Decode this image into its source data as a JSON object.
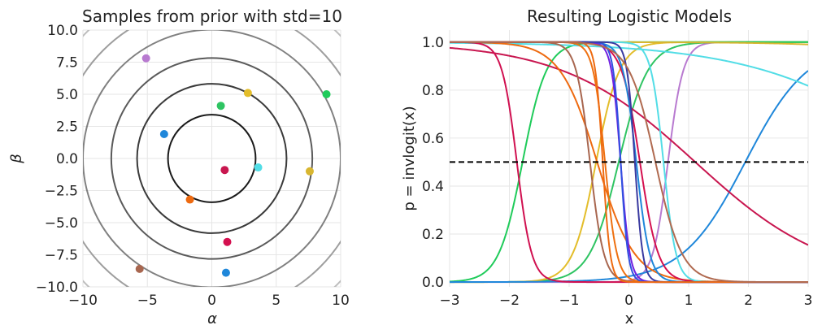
{
  "chart_data": [
    {
      "type": "scatter",
      "title": "Samples from prior with std=10",
      "xlabel": "α",
      "ylabel": "β",
      "xlim": [
        -10,
        10
      ],
      "ylim": [
        -10,
        10
      ],
      "xticks": [
        "−10",
        "−5",
        "0",
        "5",
        "10"
      ],
      "yticks": [
        "10.0",
        "7.5",
        "5.0",
        "2.5",
        "0.0",
        "−2.5",
        "−5.0",
        "−7.5",
        "−10.0"
      ],
      "xtick_values": [
        -10,
        -5,
        0,
        5,
        10
      ],
      "ytick_values": [
        10,
        7.5,
        5,
        2.5,
        0,
        -2.5,
        -5,
        -7.5,
        -10
      ],
      "grid": true,
      "contours": [
        {
          "radius": 3.4,
          "color": "#1a1a1a"
        },
        {
          "radius": 5.8,
          "color": "#3a3a3a"
        },
        {
          "radius": 7.8,
          "color": "#5a5a5a"
        },
        {
          "radius": 10.0,
          "color": "#808080"
        },
        {
          "radius": 11.9,
          "color": "#9e9e9e"
        },
        {
          "radius": 13.8,
          "color": "#bdbdbd"
        }
      ],
      "points": [
        {
          "alpha": -5.1,
          "beta": 7.8,
          "color": "#b87ad0"
        },
        {
          "alpha": 0.7,
          "beta": 4.1,
          "color": "#2ec462"
        },
        {
          "alpha": 2.8,
          "beta": 5.1,
          "color": "#e3bd2a"
        },
        {
          "alpha": 8.9,
          "beta": 5.0,
          "color": "#1fcb5a"
        },
        {
          "alpha": -3.7,
          "beta": 1.9,
          "color": "#1f87da"
        },
        {
          "alpha": 1.0,
          "beta": -0.9,
          "color": "#c8164f"
        },
        {
          "alpha": 3.6,
          "beta": -0.7,
          "color": "#52dde6"
        },
        {
          "alpha": 7.6,
          "beta": -1.0,
          "color": "#d8b630"
        },
        {
          "alpha": -1.7,
          "beta": -3.2,
          "color": "#ee6a10"
        },
        {
          "alpha": 1.2,
          "beta": -6.5,
          "color": "#d4104f"
        },
        {
          "alpha": -5.6,
          "beta": -8.6,
          "color": "#a8664f"
        },
        {
          "alpha": 1.1,
          "beta": -8.9,
          "color": "#1f87da"
        }
      ]
    },
    {
      "type": "line",
      "title": "Resulting Logistic Models",
      "xlabel": "x",
      "ylabel": "p = invlogit(x)",
      "xlim": [
        -3,
        3
      ],
      "ylim": [
        -0.02,
        1.05
      ],
      "xticks": [
        "−3",
        "−2",
        "−1",
        "0",
        "1",
        "2",
        "3"
      ],
      "yticks": [
        "1.0",
        "0.8",
        "0.6",
        "0.4",
        "0.2",
        "0.0"
      ],
      "xtick_values": [
        -3,
        -2,
        -1,
        0,
        1,
        2,
        3
      ],
      "ytick_values": [
        1.0,
        0.8,
        0.6,
        0.4,
        0.2,
        0.0
      ],
      "grid": true,
      "reference_line": {
        "y": 0.5,
        "style": "dashed",
        "color": "#000000"
      },
      "series": [
        {
          "color": "#b87ad0",
          "alpha": -5.1,
          "beta": 7.8
        },
        {
          "color": "#2ec462",
          "alpha": 0.7,
          "beta": 4.1
        },
        {
          "color": "#e3bd2a",
          "alpha": 2.8,
          "beta": 5.1
        },
        {
          "color": "#1fcb5a",
          "alpha": 8.9,
          "beta": 5.0
        },
        {
          "color": "#1f87da",
          "alpha": -3.7,
          "beta": 1.9
        },
        {
          "color": "#c8164f",
          "alpha": 1.0,
          "beta": -0.9
        },
        {
          "color": "#52dde6",
          "alpha": 3.6,
          "beta": -0.7
        },
        {
          "color": "#d8b630",
          "alpha": 7.6,
          "beta": -1.0
        },
        {
          "color": "#ee6a10",
          "alpha": -1.7,
          "beta": -3.2
        },
        {
          "color": "#d4104f",
          "alpha": 1.2,
          "beta": -6.5
        },
        {
          "color": "#a8664f",
          "alpha": -5.6,
          "beta": -8.6
        },
        {
          "color": "#1f87da",
          "alpha": 1.1,
          "beta": -8.9
        },
        {
          "color": "#d01050",
          "alpha": -15,
          "beta": -8.0
        },
        {
          "color": "#52dde6",
          "alpha": 5.5,
          "beta": -9.5
        },
        {
          "color": "#ee7010",
          "alpha": -4.0,
          "beta": -10.0
        },
        {
          "color": "#7020e0",
          "alpha": -1.8,
          "beta": -13.0
        },
        {
          "color": "#3050e0",
          "alpha": -2.2,
          "beta": -16.0
        },
        {
          "color": "#3a3aa0",
          "alpha": 1.5,
          "beta": -15.0
        },
        {
          "color": "#ee6a10",
          "alpha": -7.0,
          "beta": -16.0
        },
        {
          "color": "#b06a50",
          "alpha": 2.0,
          "beta": -4.5
        }
      ]
    }
  ]
}
